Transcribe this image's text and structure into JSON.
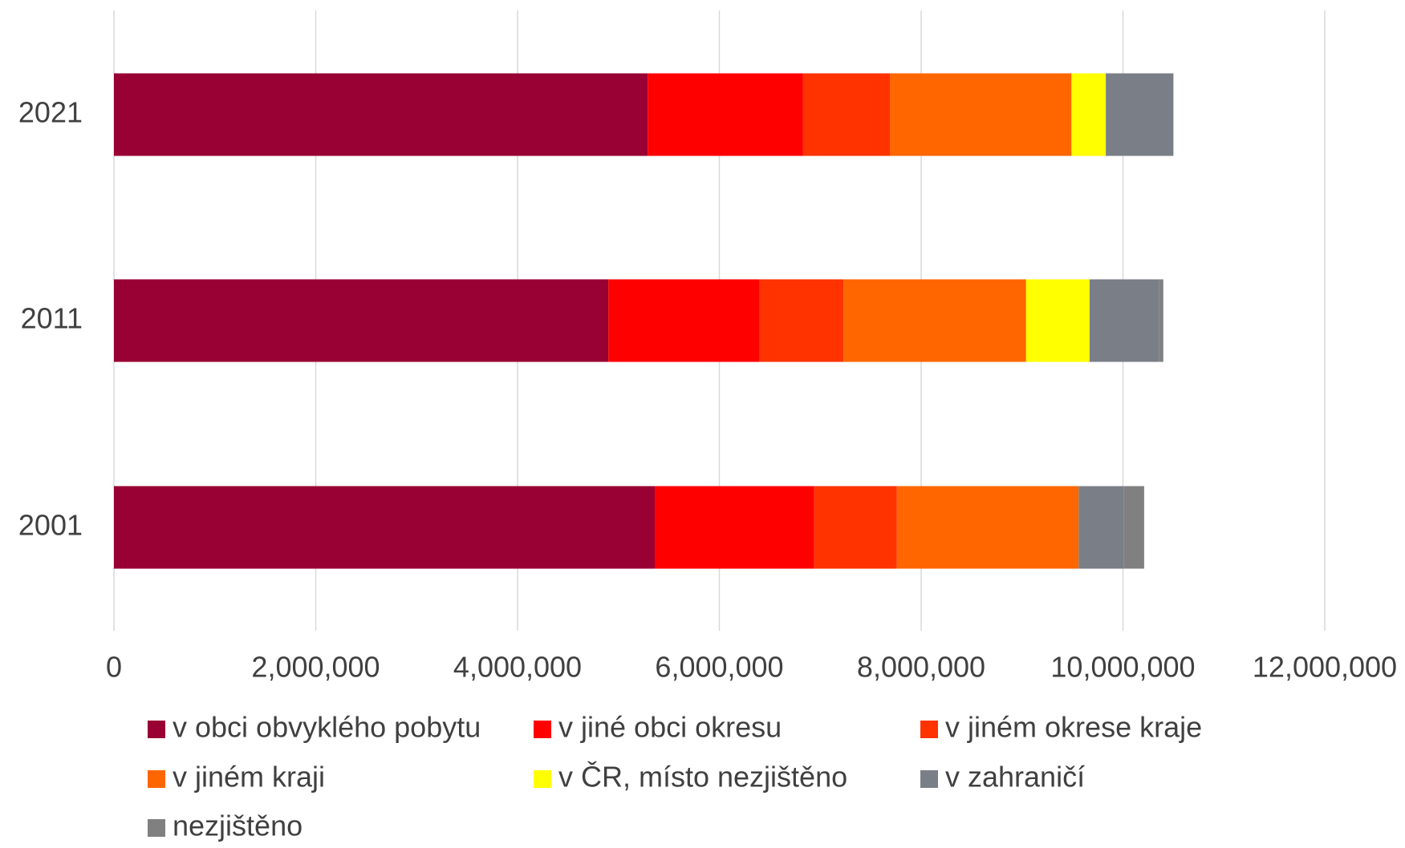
{
  "chart_data": {
    "type": "stacked-bar-horizontal",
    "categories": [
      "2021",
      "2011",
      "2001"
    ],
    "series": [
      {
        "name": "v obci obvyklého pobytu",
        "color": "#990033",
        "values": [
          5290000,
          4900000,
          5360000
        ]
      },
      {
        "name": "v jiné obci okresu",
        "color": "#ff0000",
        "values": [
          1540000,
          1500000,
          1580000
        ]
      },
      {
        "name": "v jiném okrese kraje",
        "color": "#ff3300",
        "values": [
          860000,
          830000,
          820000
        ]
      },
      {
        "name": "v jiném kraji",
        "color": "#ff6600",
        "values": [
          1800000,
          1810000,
          1800000
        ]
      },
      {
        "name": "v ČR, místo nezjištěno",
        "color": "#ffff00",
        "values": [
          340000,
          630000,
          0
        ]
      },
      {
        "name": "v zahraničí",
        "color": "#7a7f87",
        "values": [
          670000,
          690000,
          450000
        ]
      },
      {
        "name": "nezjištěno",
        "color": "#808080",
        "values": [
          0,
          40000,
          200000
        ]
      }
    ],
    "xlim": [
      0,
      12000000
    ],
    "xticks": [
      0,
      {
        "value": 2000000,
        "label": "2,000,000"
      },
      {
        "value": 4000000,
        "label": "4,000,000"
      },
      {
        "value": 6000000,
        "label": "6,000,000"
      },
      {
        "value": 8000000,
        "label": "8,000,000"
      },
      {
        "value": 10000000,
        "label": "10,000,000"
      },
      {
        "value": 12000000,
        "label": "12,000,000"
      }
    ],
    "grid": true
  }
}
